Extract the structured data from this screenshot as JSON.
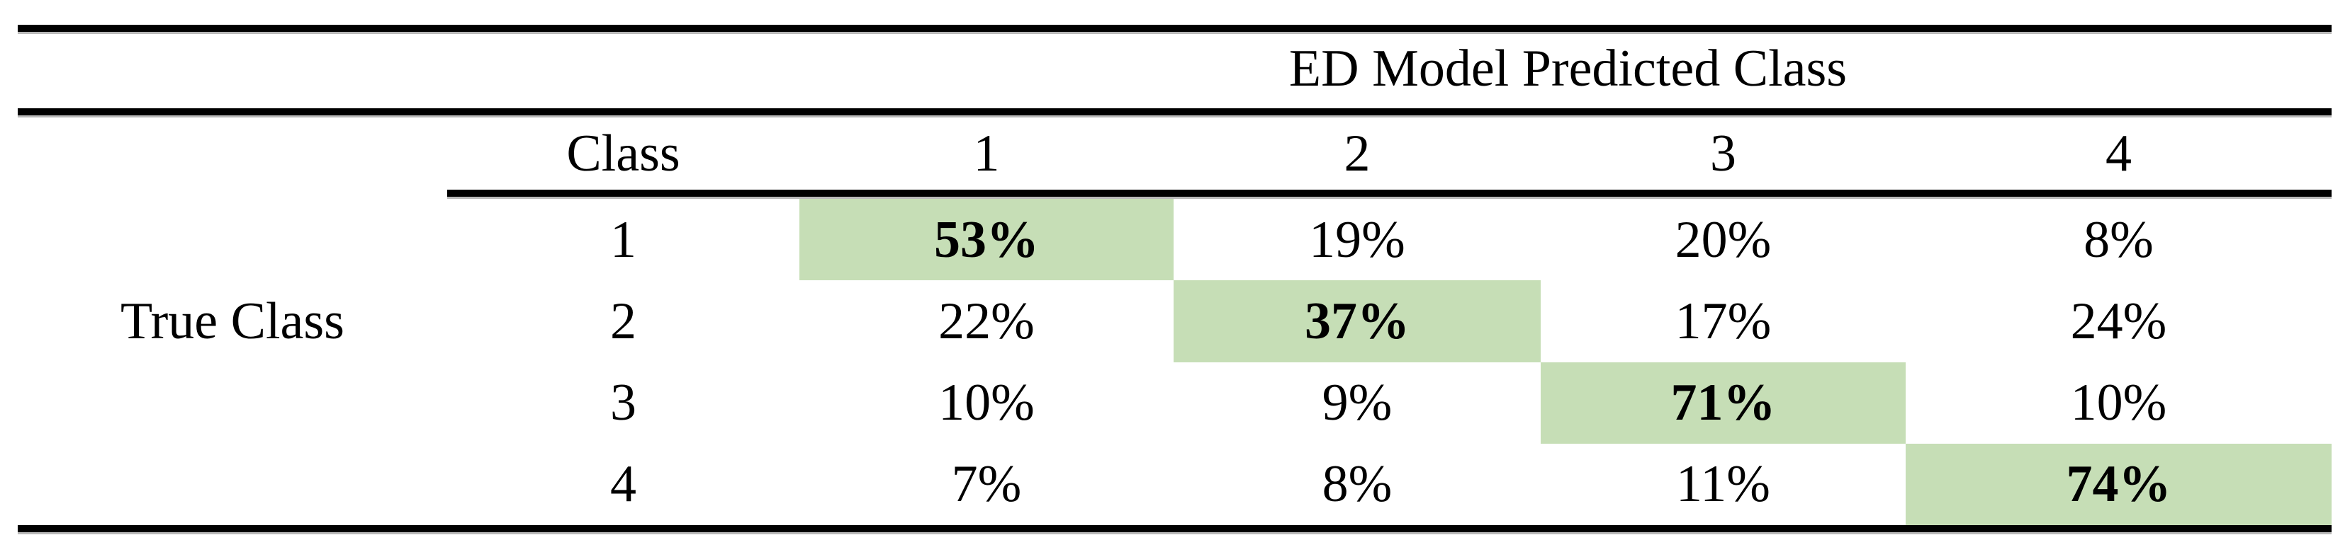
{
  "table": {
    "col_group_title": "ED Model Predicted Class",
    "row_group_label": "True Class",
    "header": {
      "class_label": "Class",
      "predicted": [
        "1",
        "2",
        "3",
        "4"
      ]
    },
    "rows": [
      {
        "label": "1",
        "values": [
          "53%",
          "19%",
          "20%",
          "8%"
        ]
      },
      {
        "label": "2",
        "values": [
          "22%",
          "37%",
          "17%",
          "24%"
        ]
      },
      {
        "label": "3",
        "values": [
          "10%",
          "9%",
          "71%",
          "10%"
        ]
      },
      {
        "label": "4",
        "values": [
          "7%",
          "8%",
          "11%",
          "74%"
        ]
      }
    ],
    "highlight_color": "#c6deb6",
    "rule_color": "#000000"
  },
  "chart_data": {
    "type": "table",
    "title": "ED Model Predicted Class",
    "row_axis_label": "True Class",
    "columns": [
      "1",
      "2",
      "3",
      "4"
    ],
    "row_labels": [
      "1",
      "2",
      "3",
      "4"
    ],
    "values_percent": [
      [
        53,
        19,
        20,
        8
      ],
      [
        22,
        37,
        17,
        24
      ],
      [
        10,
        9,
        71,
        10
      ],
      [
        7,
        8,
        11,
        74
      ]
    ],
    "highlighted_diagonal_percent": [
      53,
      37,
      71,
      74
    ],
    "highlight_color": "#c6deb6"
  }
}
